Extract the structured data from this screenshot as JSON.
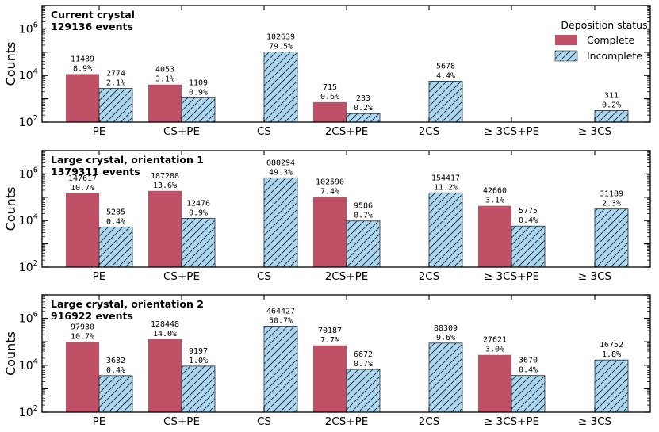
{
  "chart_data": {
    "type": "bar",
    "yscale": "log",
    "ylabel": "Counts",
    "ylim": [
      100,
      10000000
    ],
    "categories": [
      "PE",
      "CS+PE",
      "CS",
      "2CS+PE",
      "2CS",
      "≥ 3CS+PE",
      "≥ 3CS"
    ],
    "legend": {
      "title": "Deposition status",
      "position": "top-right",
      "entries": [
        "Complete",
        "Incomplete"
      ]
    },
    "colors": {
      "complete": "#c05066",
      "incomplete": "#acd7ee",
      "hatch": "#1c2c3c",
      "axis": "#000000"
    },
    "panels": [
      {
        "title": "Current crystal",
        "events": "129136 events",
        "series": [
          {
            "name": "Complete",
            "values": [
              11489,
              4053,
              null,
              715,
              null,
              null,
              null
            ],
            "labels": [
              "11489",
              "4053",
              null,
              "715",
              null,
              null,
              null
            ],
            "percents": [
              "8.9%",
              "3.1%",
              null,
              "0.6%",
              null,
              null,
              null
            ]
          },
          {
            "name": "Incomplete",
            "values": [
              2774,
              1109,
              102639,
              233,
              5678,
              null,
              311
            ],
            "labels": [
              "2774",
              "1109",
              "102639",
              "233",
              "5678",
              null,
              "311"
            ],
            "percents": [
              "2.1%",
              "0.9%",
              "79.5%",
              "0.2%",
              "4.4%",
              null,
              "0.2%"
            ]
          }
        ]
      },
      {
        "title": "Large crystal, orientation 1",
        "events": "1379311 events",
        "series": [
          {
            "name": "Complete",
            "values": [
              147617,
              187288,
              null,
              102590,
              null,
              42660,
              null
            ],
            "labels": [
              "147617",
              "187288",
              null,
              "102590",
              null,
              "42660",
              null
            ],
            "percents": [
              "10.7%",
              "13.6%",
              null,
              "7.4%",
              null,
              "3.1%",
              null
            ]
          },
          {
            "name": "Incomplete",
            "values": [
              5285,
              12476,
              680294,
              9586,
              154417,
              5775,
              31189
            ],
            "labels": [
              "5285",
              "12476",
              "680294",
              "9586",
              "154417",
              "5775",
              "31189"
            ],
            "percents": [
              "0.4%",
              "0.9%",
              "49.3%",
              "0.7%",
              "11.2%",
              "0.4%",
              "2.3%"
            ]
          }
        ]
      },
      {
        "title": "Large crystal, orientation 2",
        "events": "916922 events",
        "series": [
          {
            "name": "Complete",
            "values": [
              97930,
              128448,
              null,
              70187,
              null,
              27621,
              null
            ],
            "labels": [
              "97930",
              "128448",
              null,
              "70187",
              null,
              "27621",
              null
            ],
            "percents": [
              "10.7%",
              "14.0%",
              null,
              "7.7%",
              null,
              "3.0%",
              null
            ]
          },
          {
            "name": "Incomplete",
            "values": [
              3632,
              9197,
              464427,
              6672,
              88309,
              3670,
              16752
            ],
            "labels": [
              "3632",
              "9197",
              "464427",
              "6672",
              "88309",
              "3670",
              "16752"
            ],
            "percents": [
              "0.4%",
              "1.0%",
              "50.7%",
              "0.7%",
              "9.6%",
              "0.4%",
              "1.8%"
            ]
          }
        ]
      }
    ]
  }
}
